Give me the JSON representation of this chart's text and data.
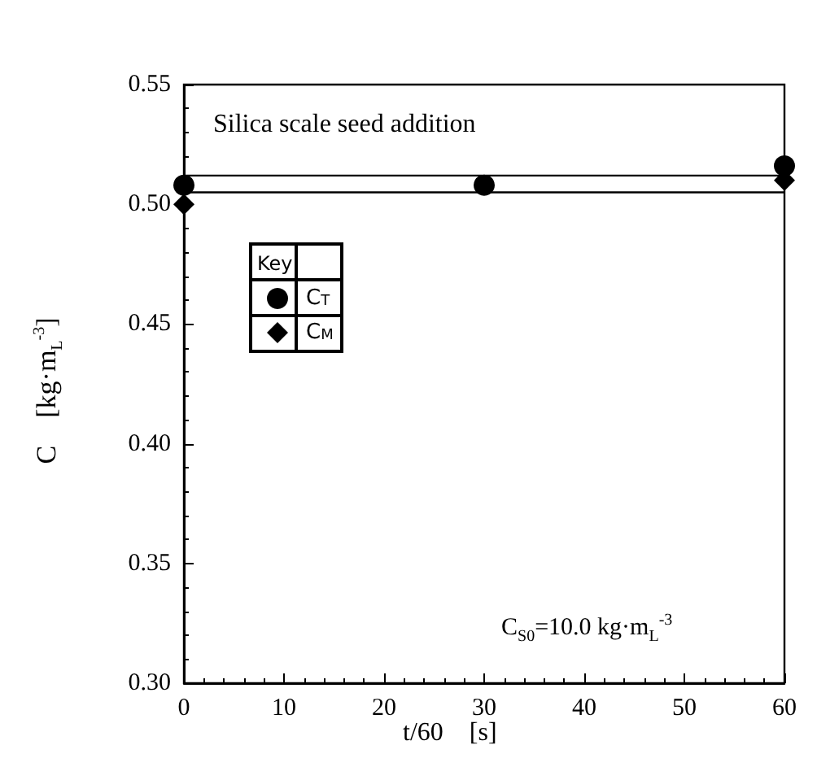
{
  "chart_data": {
    "type": "scatter",
    "xlabel": "t/60    [s]",
    "ylabel": "C    [kg·m$_{L}$$^{-3}$]",
    "legend_title": "Key",
    "legend": "left",
    "annotations": [
      "Silica scale seed addition",
      "C$_{S0}$=10.0 kg·m$_{L}$$^{-3}$"
    ],
    "x": [
      0,
      30,
      60
    ],
    "series": [
      {
        "name": "C$_{T}$",
        "color": "#000000",
        "marker": "circle",
        "values": [
          0.508,
          0.508,
          0.516
        ]
      },
      {
        "name": "C$_{M}$",
        "color": "#000000",
        "marker": "diamond",
        "values": [
          0.5,
          null,
          0.51
        ]
      }
    ],
    "ref_lines": [
      {
        "axis": "y",
        "value": 0.512,
        "color": "#000000"
      },
      {
        "axis": "y",
        "value": 0.505,
        "color": "#000000"
      }
    ],
    "xlim": [
      0,
      60
    ],
    "xticks": [
      0,
      10,
      20,
      30,
      40,
      50,
      60
    ],
    "ylim": [
      0.3,
      0.55
    ],
    "yticks": [
      {
        "value": 0.3,
        "label": "0.30"
      },
      {
        "value": 0.35,
        "label": "0.35"
      },
      {
        "value": 0.4,
        "label": "0.40"
      },
      {
        "value": 0.45,
        "label": "0.45"
      },
      {
        "value": 0.5,
        "label": "0.50"
      },
      {
        "value": 0.55,
        "label": "0.55"
      }
    ],
    "grid": false
  }
}
